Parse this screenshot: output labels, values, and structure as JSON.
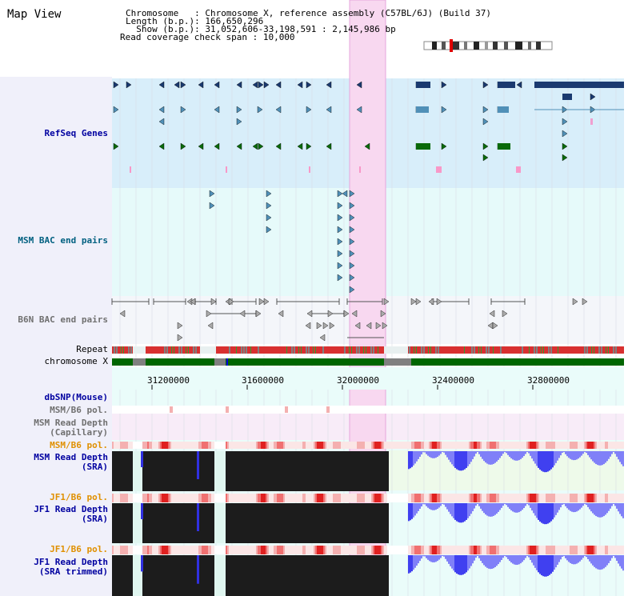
{
  "title": "Map View",
  "header": {
    "chromosome_label": "Chromosome   ",
    "chromosome_value": ": Chromosome X, reference assembly (C57BL/6J) (Build 37)",
    "length_label": "Length (b.p.)",
    "length_value": ": 166,650,296",
    "show_label": "  Show (b.p.)",
    "show_value": ": 31,052,606-33,198,591 : 2,145,986 bp",
    "span_label": "Read coverage check span",
    "span_value": " : 10,000"
  },
  "tracks": {
    "refseq": "RefSeq Genes",
    "msm_bac": "MSM BAC end pairs",
    "b6n_bac": "B6N BAC end pairs",
    "repeat": "Repeat",
    "chromosome": "chromosome X",
    "dbsnp": "dbSNP(Mouse)",
    "msm_b6_pol_1": "MSM/B6 pol.",
    "msm_depth_cap_1": "MSM Read Depth",
    "msm_depth_cap_2": "(Capillary)",
    "msm_b6_pol_2": "MSM/B6 pol.",
    "msm_depth_sra_1": "MSM Read Depth",
    "msm_depth_sra_2": "(SRA)",
    "jf1_b6_pol_1": "JF1/B6 pol.",
    "jf1_depth_sra_1": "JF1 Read Depth",
    "jf1_depth_sra_2": "(SRA)",
    "jf1_b6_pol_2": "JF1/B6 pol.",
    "jf1_depth_trim_1": "JF1 Read Depth",
    "jf1_depth_trim_2": "(SRA trimmed)"
  },
  "axis": {
    "ticks": [
      "31200000",
      "31600000",
      "32000000",
      "32400000",
      "32800000"
    ]
  },
  "colors": {
    "label_blue": "#0000a0",
    "label_teal": "#006080",
    "label_gray": "#707070",
    "label_orange": "#e09000",
    "highlight": "#f8d8f0",
    "refseq_bg": "#d8eefa",
    "bac_bg": "#e6fafa",
    "chrom_green": "#006600",
    "depth_black": "#1c1c1c",
    "depth_blue": "#8080f8"
  }
}
